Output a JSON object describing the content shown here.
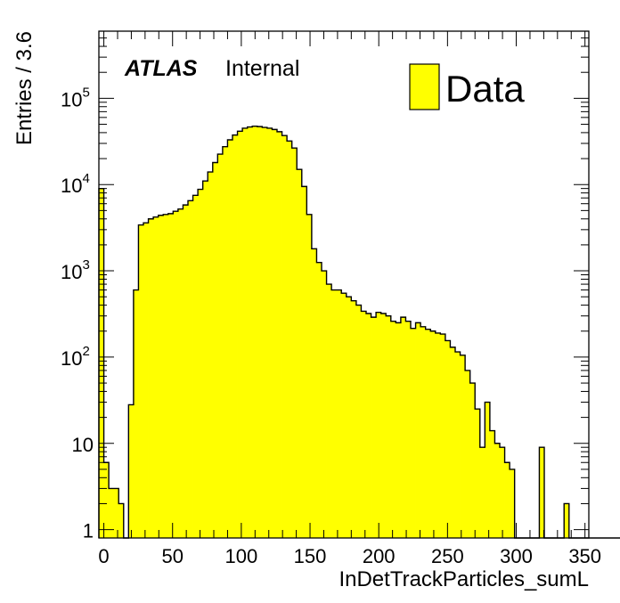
{
  "chart_data": {
    "type": "bar",
    "subtype": "histogram",
    "xlabel": "InDetTrackParticles_sumL",
    "ylabel": "Entries / 3.6",
    "bin_width": 3.6,
    "x_start": -3.6,
    "xlim": [
      -3.6,
      352.8
    ],
    "ylim": [
      0.8,
      600000
    ],
    "log_y": true,
    "grid": false,
    "x_ticks": [
      0,
      50,
      100,
      150,
      200,
      250,
      300,
      350
    ],
    "x_tick_labels": [
      "0",
      "50",
      "100",
      "150",
      "200",
      "250",
      "300",
      "350"
    ],
    "y_ticks": [
      {
        "value": 1,
        "base": "1",
        "exp": ""
      },
      {
        "value": 10,
        "base": "10",
        "exp": ""
      },
      {
        "value": 100,
        "base": "10",
        "exp": "2"
      },
      {
        "value": 1000,
        "base": "10",
        "exp": "3"
      },
      {
        "value": 10000,
        "base": "10",
        "exp": "4"
      },
      {
        "value": 100000,
        "base": "10",
        "exp": "5"
      }
    ],
    "fill_color": "#ffff00",
    "line_color": "#000000",
    "atlas_label": "ATLAS",
    "atlas_status": "Internal",
    "legend_position": "top-right",
    "legend": [
      {
        "name": "Data",
        "color": "#ffff00"
      }
    ],
    "values": [
      9000,
      6,
      3,
      3,
      2,
      0,
      28,
      600,
      3400,
      3600,
      4000,
      4200,
      4400,
      4500,
      4600,
      4900,
      5200,
      5800,
      6500,
      7500,
      8800,
      11000,
      14000,
      18000,
      22500,
      27500,
      33000,
      37500,
      41500,
      45000,
      46500,
      47500,
      47000,
      46000,
      45000,
      43500,
      41000,
      37000,
      32000,
      26500,
      15000,
      9500,
      4500,
      1800,
      1250,
      1000,
      700,
      600,
      600,
      550,
      500,
      450,
      400,
      340,
      320,
      290,
      330,
      320,
      300,
      260,
      250,
      290,
      260,
      215,
      250,
      225,
      210,
      200,
      190,
      185,
      155,
      130,
      115,
      105,
      70,
      50,
      25,
      9,
      30,
      14,
      10,
      9,
      6,
      5,
      0,
      0,
      0,
      0,
      0,
      9,
      0,
      0,
      0,
      0,
      2,
      0,
      0,
      0,
      0,
      0,
      0,
      0,
      0,
      0,
      0,
      0,
      0,
      0,
      0
    ]
  }
}
